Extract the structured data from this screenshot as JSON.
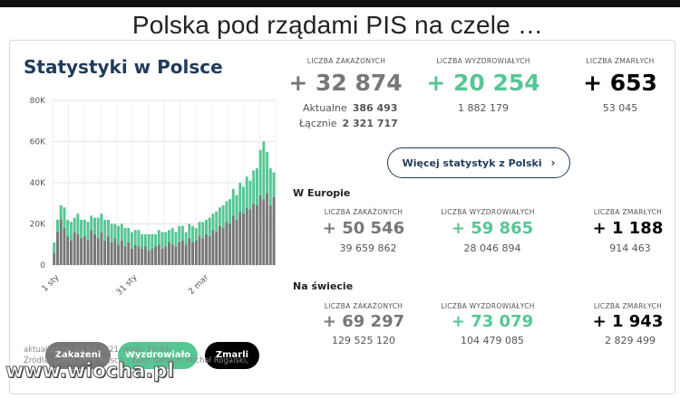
{
  "caption": "Polska pod rządami PIS na czele …",
  "watermark": "www.wiocha.pl",
  "panel": {
    "title": "Statystyki w Polsce",
    "buttons": {
      "infected": "Zakażeni",
      "recovered": "Wyzdrowiało",
      "deaths": "Zmarli"
    },
    "update": "aktualizacja: 01.04.2021, godz. 10:04",
    "source": "Źródła: Covid-19 w Polsce – zbiór danych: Michał Rogalski,"
  },
  "poland": {
    "infected": {
      "label": "LICZBA ZAKAŻONYCH",
      "value": "+ 32 874",
      "active_label": "Aktualne",
      "active_value": "386 493",
      "total_label": "Łącznie",
      "total_value": "2 321 717"
    },
    "recovered": {
      "label": "LICZBA WYZDROWIAŁYCH",
      "value": "+ 20 254",
      "total": "1 882 179"
    },
    "deaths": {
      "label": "LICZBA ZMARŁYCH",
      "value": "+ 653",
      "total": "53 045"
    },
    "more_button": "Więcej statystyk z Polski"
  },
  "europe": {
    "title": "W Europie",
    "infected": {
      "label": "LICZBA ZAKAŻONYCH",
      "value": "+ 50 546",
      "total": "39 659 862"
    },
    "recovered": {
      "label": "LICZBA WYZDROWIAŁYCH",
      "value": "+ 59 865",
      "total": "28 046 894"
    },
    "deaths": {
      "label": "LICZBA ZMARŁYCH",
      "value": "+ 1 188",
      "total": "914 463"
    }
  },
  "world": {
    "title": "Na świecie",
    "infected": {
      "label": "LICZBA ZAKAŻONYCH",
      "value": "+ 69 297",
      "total": "129 525 120"
    },
    "recovered": {
      "label": "LICZBA WYZDROWIAŁYCH",
      "value": "+ 73 079",
      "total": "104 479 085"
    },
    "deaths": {
      "label": "LICZBA ZMARŁYCH",
      "value": "+ 1 943",
      "total": "2 829 499"
    }
  },
  "colors": {
    "navy": "#1f3b5c",
    "green": "#56c693",
    "gray": "#777777",
    "black": "#000000"
  },
  "chart_data": {
    "type": "bar",
    "ylim": [
      0,
      80000
    ],
    "yticks": [
      "0",
      "20K",
      "40K",
      "60K",
      "80K"
    ],
    "xticks": [
      "1 sty",
      "31 sty",
      "2 mar"
    ],
    "series": [
      {
        "name": "Zakażeni",
        "color": "#777777",
        "values": [
          6000,
          16000,
          22000,
          18000,
          14000,
          12000,
          16000,
          15000,
          13000,
          14000,
          12000,
          17000,
          15000,
          13000,
          16000,
          12000,
          14000,
          11000,
          13000,
          10000,
          12000,
          9000,
          11000,
          8000,
          10000,
          9000,
          8000,
          9000,
          7000,
          8000,
          9000,
          10000,
          8000,
          9000,
          11000,
          10000,
          9000,
          11000,
          12000,
          10000,
          13000,
          11000,
          12000,
          14000,
          13000,
          15000,
          14000,
          17000,
          16000,
          19000,
          18000,
          21000,
          20000,
          24000,
          22000,
          26000,
          25000,
          28000,
          27000,
          30000,
          29000,
          34000,
          32000,
          35000,
          29000,
          33000
        ]
      },
      {
        "name": "Wyzdrowiało",
        "color": "#56c693",
        "values": [
          5000,
          6000,
          7000,
          10000,
          8000,
          9000,
          7000,
          10000,
          9000,
          8000,
          9000,
          7000,
          8000,
          10000,
          9000,
          10000,
          8000,
          9000,
          7000,
          9000,
          8000,
          9000,
          7000,
          8000,
          7000,
          8000,
          7000,
          6000,
          8000,
          7000,
          6000,
          7000,
          8000,
          7000,
          6000,
          8000,
          7000,
          8000,
          7000,
          6000,
          7000,
          8000,
          6000,
          7000,
          8000,
          7000,
          9000,
          8000,
          10000,
          9000,
          11000,
          10000,
          12000,
          13000,
          12000,
          14000,
          13000,
          15000,
          14000,
          16000,
          18000,
          22000,
          28000,
          20000,
          18000,
          12000
        ]
      }
    ]
  }
}
